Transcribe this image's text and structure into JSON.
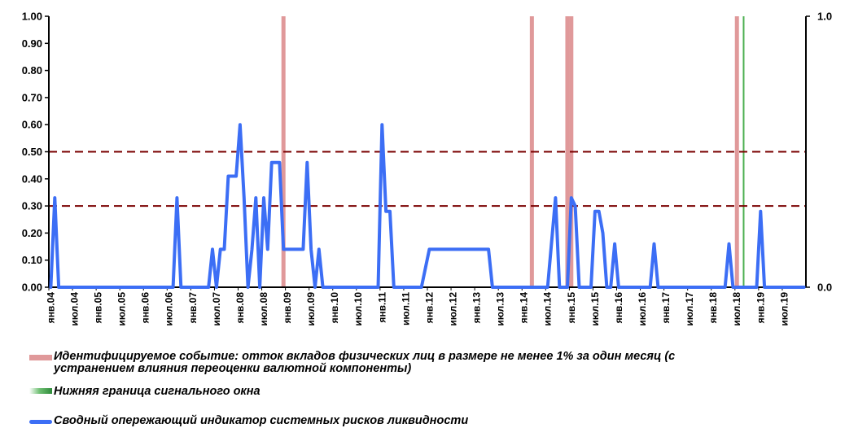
{
  "chart_data": {
    "type": "line",
    "y_left": {
      "min": 0,
      "max": 1,
      "ticks": [
        "0.00",
        "0.10",
        "0.20",
        "0.30",
        "0.40",
        "0.50",
        "0.60",
        "0.70",
        "0.80",
        "0.90",
        "1.00"
      ]
    },
    "y_right": {
      "ticks": [
        "0.0",
        "1.0"
      ]
    },
    "x_labels": [
      "янв.04",
      "июл.04",
      "янв.05",
      "июл.05",
      "янв.06",
      "июл.06",
      "янв.07",
      "июл.07",
      "янв.08",
      "июл.08",
      "янв.09",
      "июл.09",
      "янв.10",
      "июл.10",
      "янв.11",
      "июл.11",
      "янв.12",
      "июл.12",
      "янв.13",
      "июл.13",
      "янв.14",
      "июл.14",
      "янв.15",
      "июл.15",
      "янв.16",
      "июл.16",
      "янв.17",
      "июл.17",
      "янв.18",
      "июл.18",
      "янв.19",
      "июл.19"
    ],
    "threshold_lines": [
      0.5,
      0.3
    ],
    "series": [
      {
        "name": "Сводный опережающий индикатор системных рисков ликвидности",
        "color": "#3c6ef5",
        "points": [
          [
            "2004-01",
            0.0
          ],
          [
            "2004-02",
            0.33
          ],
          [
            "2004-03",
            0.0
          ],
          [
            "2006-08",
            0.0
          ],
          [
            "2006-09",
            0.33
          ],
          [
            "2006-10",
            0.0
          ],
          [
            "2007-05",
            0.0
          ],
          [
            "2007-06",
            0.14
          ],
          [
            "2007-07",
            0.0
          ],
          [
            "2007-08",
            0.14
          ],
          [
            "2007-09",
            0.14
          ],
          [
            "2007-10",
            0.41
          ],
          [
            "2007-11",
            0.41
          ],
          [
            "2007-12",
            0.41
          ],
          [
            "2008-01",
            0.6
          ],
          [
            "2008-02",
            0.33
          ],
          [
            "2008-03",
            0.0
          ],
          [
            "2008-04",
            0.14
          ],
          [
            "2008-05",
            0.33
          ],
          [
            "2008-06",
            0.0
          ],
          [
            "2008-07",
            0.33
          ],
          [
            "2008-08",
            0.14
          ],
          [
            "2008-09",
            0.46
          ],
          [
            "2008-10",
            0.46
          ],
          [
            "2008-11",
            0.46
          ],
          [
            "2008-12",
            0.14
          ],
          [
            "2009-01",
            0.14
          ],
          [
            "2009-05",
            0.14
          ],
          [
            "2009-06",
            0.46
          ],
          [
            "2009-07",
            0.14
          ],
          [
            "2009-08",
            0.0
          ],
          [
            "2009-09",
            0.14
          ],
          [
            "2009-10",
            0.0
          ],
          [
            "2010-12",
            0.0
          ],
          [
            "2011-01",
            0.6
          ],
          [
            "2011-02",
            0.28
          ],
          [
            "2011-03",
            0.28
          ],
          [
            "2011-04",
            0.0
          ],
          [
            "2011-11",
            0.0
          ],
          [
            "2012-01",
            0.14
          ],
          [
            "2013-04",
            0.14
          ],
          [
            "2013-05",
            0.0
          ],
          [
            "2014-07",
            0.0
          ],
          [
            "2014-09",
            0.33
          ],
          [
            "2014-10",
            0.0
          ],
          [
            "2014-12",
            0.0
          ],
          [
            "2015-01",
            0.33
          ],
          [
            "2015-02",
            0.3
          ],
          [
            "2015-03",
            0.0
          ],
          [
            "2015-06",
            0.0
          ],
          [
            "2015-07",
            0.28
          ],
          [
            "2015-08",
            0.28
          ],
          [
            "2015-09",
            0.2
          ],
          [
            "2015-10",
            0.0
          ],
          [
            "2015-11",
            0.0
          ],
          [
            "2015-12",
            0.16
          ],
          [
            "2016-01",
            0.0
          ],
          [
            "2016-09",
            0.0
          ],
          [
            "2016-10",
            0.16
          ],
          [
            "2016-11",
            0.0
          ],
          [
            "2018-04",
            0.0
          ],
          [
            "2018-05",
            0.16
          ],
          [
            "2018-06",
            0.0
          ],
          [
            "2018-12",
            0.0
          ],
          [
            "2019-01",
            0.28
          ],
          [
            "2019-02",
            0.0
          ],
          [
            "2019-12",
            0.0
          ]
        ]
      }
    ],
    "event_bars": [
      {
        "name": "Идентифицируемое событие: отток вкладов физических лиц в размере не менее 1% за один месяц (с устранением влияния переоценки валютной компоненты)",
        "color": "#e0999a",
        "dates": [
          "2008-12",
          "2014-03",
          "2014-12",
          "2015-01",
          "2018-07"
        ]
      }
    ],
    "lower_bound_lines": [
      {
        "name": "Нижняя граница сигнального окна",
        "color": "#4caf50",
        "dates": [
          "2018-09"
        ]
      }
    ],
    "grid": false
  },
  "legend": {
    "event_line1": "Идентифицируемое событие: отток вкладов физических лиц в размере не менее 1% за один месяц (с",
    "event_line2": "устранением влияния переоценки валютной компоненты)",
    "lower": "Нижняя граница сигнального окна",
    "indicator": "Сводный опережающий индикатор системных рисков ликвидности"
  }
}
